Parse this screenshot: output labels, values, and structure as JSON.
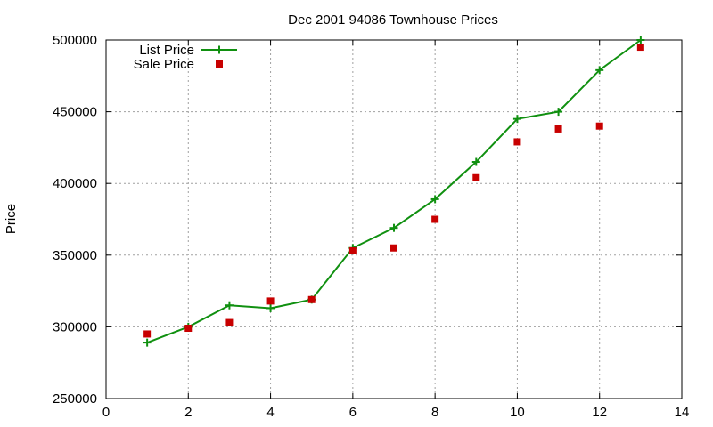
{
  "chart_data": {
    "type": "line",
    "title": "Dec 2001 94086 Townhouse Prices",
    "xlabel": "",
    "ylabel": "Price",
    "xlim": [
      0,
      14
    ],
    "ylim": [
      250000,
      500000
    ],
    "xticks": [
      0,
      2,
      4,
      6,
      8,
      10,
      12,
      14
    ],
    "yticks": [
      250000,
      300000,
      350000,
      400000,
      450000,
      500000
    ],
    "grid": true,
    "legend_position": "top-left",
    "series": [
      {
        "name": "List Price",
        "style": "line+markers",
        "marker": "plus",
        "color": "#109010",
        "x": [
          1,
          2,
          3,
          4,
          5,
          6,
          7,
          8,
          9,
          10,
          11,
          12,
          13
        ],
        "values": [
          289000,
          300000,
          315000,
          313000,
          319000,
          355000,
          369000,
          389000,
          415000,
          445000,
          450000,
          479000,
          500000
        ]
      },
      {
        "name": "Sale Price",
        "style": "markers",
        "marker": "square",
        "color": "#c80000",
        "x": [
          1,
          2,
          3,
          4,
          5,
          6,
          7,
          8,
          9,
          10,
          11,
          12,
          13
        ],
        "values": [
          295000,
          299000,
          303000,
          318000,
          319000,
          353000,
          355000,
          375000,
          404000,
          429000,
          438000,
          440000,
          495000
        ]
      }
    ]
  }
}
